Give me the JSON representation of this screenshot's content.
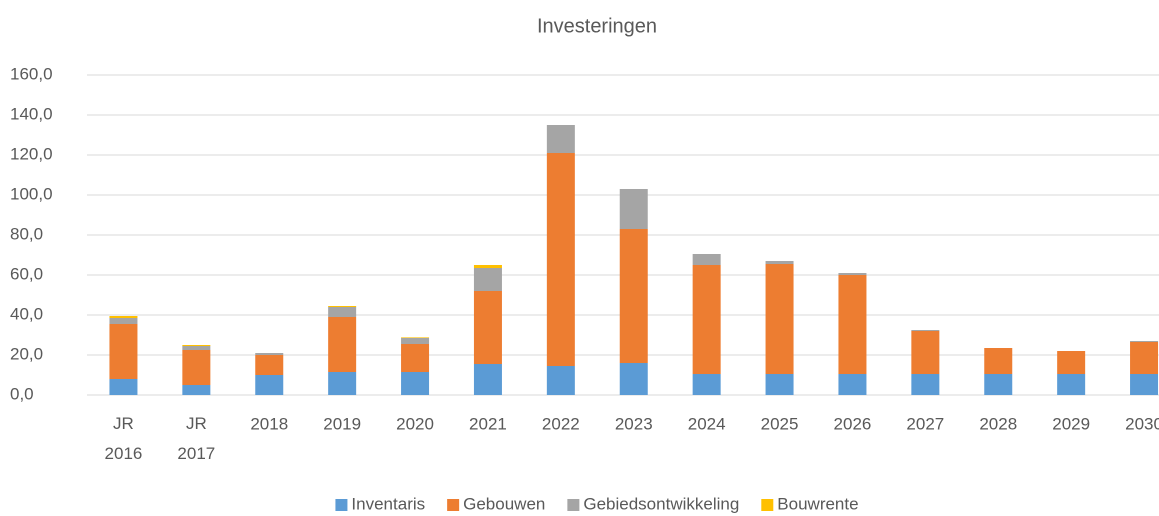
{
  "chart_data": {
    "type": "stacked_bar",
    "title": "Investeringen",
    "categories": [
      "JR 2016",
      "JR 2017",
      "2018",
      "2019",
      "2020",
      "2021",
      "2022",
      "2023",
      "2024",
      "2025",
      "2026",
      "2027",
      "2028",
      "2029",
      "2030"
    ],
    "series": [
      {
        "name": "Inventaris",
        "color": "#5b9bd5",
        "values": [
          8,
          5,
          10,
          11.5,
          11.5,
          15.5,
          14.5,
          16,
          10.5,
          10.5,
          10.5,
          10.5,
          10.5,
          10.5,
          10.5
        ]
      },
      {
        "name": "Gebouwen",
        "color": "#ed7d31",
        "values": [
          27.5,
          17.5,
          10,
          27.5,
          14,
          36.5,
          106.5,
          67,
          54.5,
          55,
          49.5,
          21.5,
          13,
          11.5,
          16
        ]
      },
      {
        "name": "Gebiedsontwikkeling",
        "color": "#a5a5a5",
        "values": [
          3,
          2,
          1,
          5,
          3,
          11.5,
          14,
          20,
          5.5,
          1.5,
          1,
          0.5,
          0,
          0,
          0.5
        ]
      },
      {
        "name": "Bouwrente",
        "color": "#ffc000",
        "values": [
          1,
          0.5,
          0,
          0.5,
          0.3,
          1.5,
          0,
          0,
          0,
          0,
          0,
          0,
          0,
          0,
          0
        ]
      }
    ],
    "ylim": [
      0,
      160
    ],
    "yticks": [
      {
        "value": 0,
        "label": "0,0"
      },
      {
        "value": 20,
        "label": "20,0"
      },
      {
        "value": 40,
        "label": "40,0"
      },
      {
        "value": 60,
        "label": "60,0"
      },
      {
        "value": 80,
        "label": "80,0"
      },
      {
        "value": 100,
        "label": "100,0"
      },
      {
        "value": 120,
        "label": "120,0"
      },
      {
        "value": 140,
        "label": "140,0"
      },
      {
        "value": 160,
        "label": "160,0"
      }
    ],
    "grid": true,
    "legend": "bottom"
  }
}
